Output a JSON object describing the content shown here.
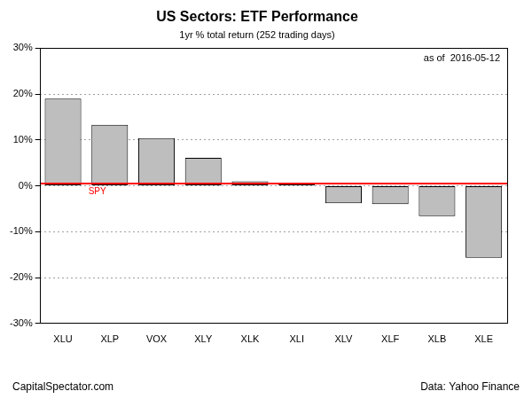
{
  "chart_data": {
    "type": "bar",
    "title": "US Sectors: ETF Performance",
    "subtitle": "1yr % total return (252 trading days)",
    "annotation": "as of  2016-05-12",
    "footer_left": "CapitalSpectator.com",
    "footer_right": "Data: Yahoo Finance",
    "categories": [
      "XLU",
      "XLP",
      "VOX",
      "XLY",
      "XLK",
      "XLI",
      "XLV",
      "XLF",
      "XLB",
      "XLE"
    ],
    "values": [
      19.0,
      13.3,
      10.4,
      6.1,
      1.0,
      0.3,
      -3.8,
      -4.0,
      -6.6,
      -15.7
    ],
    "color": "#bebebe",
    "reference_line": {
      "label": "SPY",
      "value": 0.5,
      "color": "#ff0000"
    },
    "ylim": [
      -30,
      30
    ],
    "yticks": [
      {
        "value": -30,
        "label": "-30%"
      },
      {
        "value": -20,
        "label": "-20%"
      },
      {
        "value": -10,
        "label": "-10%"
      },
      {
        "value": 0,
        "label": "0%"
      },
      {
        "value": 10,
        "label": "10%"
      },
      {
        "value": 20,
        "label": "20%"
      },
      {
        "value": 30,
        "label": "30%"
      }
    ],
    "grid": true
  }
}
